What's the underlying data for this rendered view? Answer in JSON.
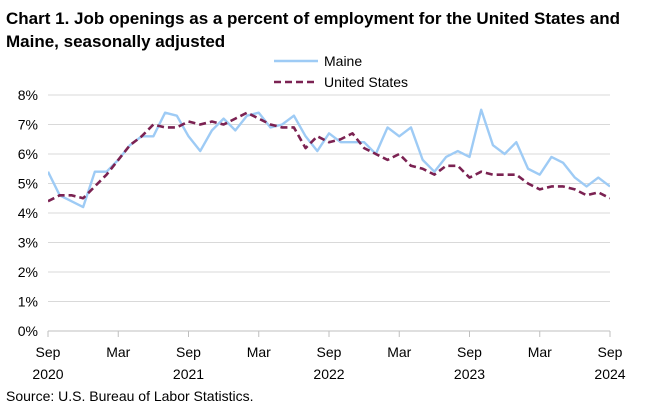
{
  "chart_data": {
    "type": "line",
    "title": "Chart 1. Job openings as a percent of employment for the United States and Maine, seasonally adjusted",
    "source": "Source: U.S. Bureau of Labor Statistics.",
    "xlabel": "",
    "ylabel": "",
    "ylim": [
      0,
      8
    ],
    "y_ticks": [
      0,
      1,
      2,
      3,
      4,
      5,
      6,
      7,
      8
    ],
    "y_tick_labels": [
      "0%",
      "1%",
      "2%",
      "3%",
      "4%",
      "5%",
      "6%",
      "7%",
      "8%"
    ],
    "x_tick_labels": [
      {
        "month": "Sep",
        "year": "2020"
      },
      {
        "month": "Mar",
        "year": ""
      },
      {
        "month": "Sep",
        "year": "2021"
      },
      {
        "month": "Mar",
        "year": ""
      },
      {
        "month": "Sep",
        "year": "2022"
      },
      {
        "month": "Mar",
        "year": ""
      },
      {
        "month": "Sep",
        "year": "2023"
      },
      {
        "month": "Mar",
        "year": ""
      },
      {
        "month": "Sep",
        "year": "2024"
      }
    ],
    "legend_position": "top-center",
    "grid": true,
    "x": [
      "Sep 2020",
      "Oct 2020",
      "Nov 2020",
      "Dec 2020",
      "Jan 2021",
      "Feb 2021",
      "Mar 2021",
      "Apr 2021",
      "May 2021",
      "Jun 2021",
      "Jul 2021",
      "Aug 2021",
      "Sep 2021",
      "Oct 2021",
      "Nov 2021",
      "Dec 2021",
      "Jan 2022",
      "Feb 2022",
      "Mar 2022",
      "Apr 2022",
      "May 2022",
      "Jun 2022",
      "Jul 2022",
      "Aug 2022",
      "Sep 2022",
      "Oct 2022",
      "Nov 2022",
      "Dec 2022",
      "Jan 2023",
      "Feb 2023",
      "Mar 2023",
      "Apr 2023",
      "May 2023",
      "Jun 2023",
      "Jul 2023",
      "Aug 2023",
      "Sep 2023",
      "Oct 2023",
      "Nov 2023",
      "Dec 2023",
      "Jan 2024",
      "Feb 2024",
      "Mar 2024",
      "Apr 2024",
      "May 2024",
      "Jun 2024",
      "Jul 2024",
      "Aug 2024",
      "Sep 2024"
    ],
    "series": [
      {
        "name": "Maine",
        "color": "#9ecbf5",
        "style": "solid",
        "values": [
          5.4,
          4.6,
          4.4,
          4.2,
          5.4,
          5.4,
          5.8,
          6.3,
          6.6,
          6.6,
          7.4,
          7.3,
          6.6,
          6.1,
          6.8,
          7.2,
          6.8,
          7.3,
          7.4,
          6.9,
          7.0,
          7.3,
          6.6,
          6.1,
          6.7,
          6.4,
          6.4,
          6.4,
          6.0,
          6.9,
          6.6,
          6.9,
          5.8,
          5.4,
          5.9,
          6.1,
          5.9,
          7.5,
          6.3,
          6.0,
          6.4,
          5.5,
          5.3,
          5.9,
          5.7,
          5.2,
          4.9,
          5.2,
          4.9
        ]
      },
      {
        "name": "United States",
        "color": "#7b2252",
        "style": "dashed",
        "values": [
          4.4,
          4.6,
          4.6,
          4.5,
          4.9,
          5.3,
          5.8,
          6.3,
          6.6,
          7.0,
          6.9,
          6.9,
          7.1,
          7.0,
          7.1,
          7.0,
          7.2,
          7.4,
          7.2,
          7.0,
          6.9,
          6.9,
          6.2,
          6.6,
          6.4,
          6.5,
          6.7,
          6.2,
          6.0,
          5.8,
          6.0,
          5.6,
          5.5,
          5.3,
          5.6,
          5.6,
          5.2,
          5.4,
          5.3,
          5.3,
          5.3,
          5.0,
          4.8,
          4.9,
          4.9,
          4.8,
          4.6,
          4.7,
          4.5
        ]
      }
    ]
  }
}
